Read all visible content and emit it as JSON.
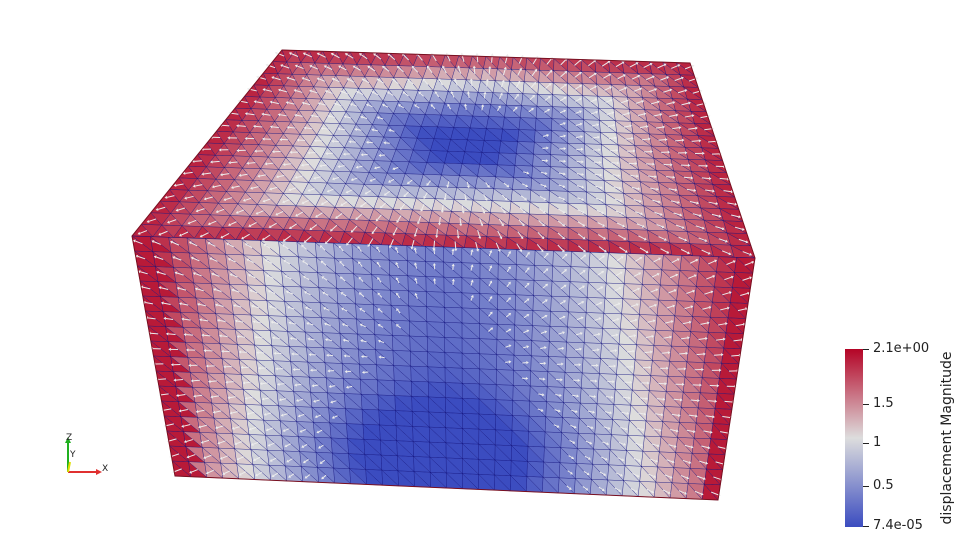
{
  "view": {
    "background": "#ffffff",
    "mesh_line_color": "#0a0a7a",
    "arrow_color": "#ececec",
    "colormap": [
      "#3b4cc0",
      "#dddddd",
      "#b40426"
    ]
  },
  "orientation_axes": {
    "x_label": "X",
    "y_label": "Y",
    "z_label": "Z",
    "x_color": "#e03030",
    "y_color": "#e0e000",
    "z_color": "#20b020"
  },
  "colorbar": {
    "title": "displacement Magnitude",
    "max_label": "2.1e+00",
    "min_label": "7.4e-05",
    "tick_labels": [
      "2.1e+00",
      "1.5",
      "1",
      "0.5",
      "7.4e-05"
    ]
  }
}
